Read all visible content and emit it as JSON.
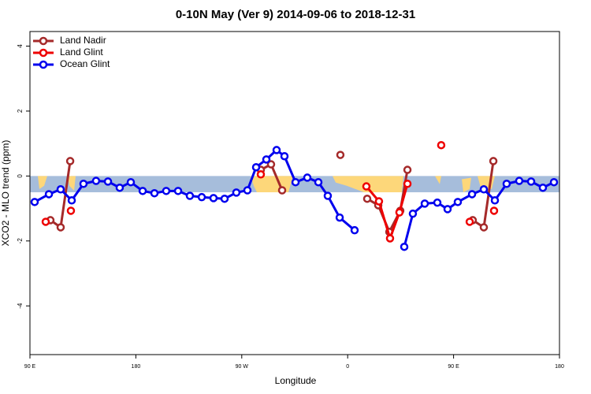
{
  "chart_data": {
    "type": "line",
    "title": "0-10N May (Ver 9)   2014-09-06 to 2018-12-31",
    "x_label": "Longitude",
    "y_label": "XCO2 - MLO trend (ppm)",
    "xlim": [
      90,
      540
    ],
    "xticks": [
      {
        "value": 90,
        "label": "90 E"
      },
      {
        "value": 180,
        "label": "180"
      },
      {
        "value": 270,
        "label": "90 W"
      },
      {
        "value": 360,
        "label": "0"
      },
      {
        "value": 450,
        "label": "90 E"
      },
      {
        "value": 540,
        "label": "180"
      }
    ],
    "ylim": [
      -5.5,
      4.45
    ],
    "yticks": [
      -4,
      -2,
      0,
      2,
      4
    ],
    "map_strip_ylim": [
      -0.5,
      0
    ],
    "map_strip_color": "#a6bddb",
    "legend": "top-left",
    "series": [
      {
        "name": "Land Nadir",
        "color": "#a52a2a",
        "x": [
          107.4,
          116.1,
          124.2,
          null,
          286.2,
          294.9,
          304.3,
          null,
          353.8,
          null,
          376.6,
          386.0,
          395.4,
          404.7,
          410.8,
          null,
          466.3,
          475.7,
          483.8
        ],
        "values": [
          -1.36,
          -1.58,
          0.46,
          null,
          0.19,
          0.36,
          -0.44,
          null,
          0.65,
          null,
          -0.7,
          -0.9,
          -1.72,
          -1.07,
          0.19,
          null,
          -1.36,
          -1.58,
          0.46
        ]
      },
      {
        "name": "Land Glint",
        "color": "#ee0000",
        "x": [
          103.4,
          null,
          124.8,
          null,
          286.2,
          null,
          375.9,
          386.6,
          396.0,
          404.0,
          410.8,
          null,
          439.5,
          null,
          463.7,
          null,
          484.4
        ],
        "values": [
          -1.41,
          null,
          -1.07,
          null,
          0.05,
          null,
          -0.32,
          -0.78,
          -1.92,
          -1.12,
          -0.24,
          null,
          0.95,
          null,
          -1.41,
          null,
          -1.07
        ]
      },
      {
        "name": "Ocean Glint",
        "color": "#0000ee",
        "x": [
          94.0,
          106.1,
          116.1,
          125.5,
          135.5,
          146.2,
          156.3,
          166.3,
          175.7,
          185.8,
          195.8,
          205.8,
          215.9,
          225.9,
          236.0,
          246.0,
          255.4,
          265.4,
          274.8,
          282.2,
          290.9,
          299.6,
          306.3,
          315.7,
          325.7,
          335.1,
          343.1,
          353.2,
          365.9,
          null,
          408.1,
          415.4,
          425.5,
          436.2,
          444.9,
          453.6,
          465.7,
          475.7,
          485.1,
          495.1,
          505.8,
          515.9,
          525.9,
          535.3
        ],
        "values": [
          -0.8,
          -0.56,
          -0.41,
          -0.75,
          -0.24,
          -0.15,
          -0.17,
          -0.36,
          -0.19,
          -0.46,
          -0.53,
          -0.46,
          -0.46,
          -0.61,
          -0.65,
          -0.68,
          -0.7,
          -0.51,
          -0.44,
          0.27,
          0.51,
          0.8,
          0.61,
          -0.19,
          -0.05,
          -0.19,
          -0.61,
          -1.28,
          -1.67,
          null,
          -2.18,
          -1.16,
          -0.85,
          -0.82,
          -1.02,
          -0.8,
          -0.56,
          -0.41,
          -0.75,
          -0.24,
          -0.15,
          -0.17,
          -0.36,
          -0.19
        ]
      }
    ]
  }
}
